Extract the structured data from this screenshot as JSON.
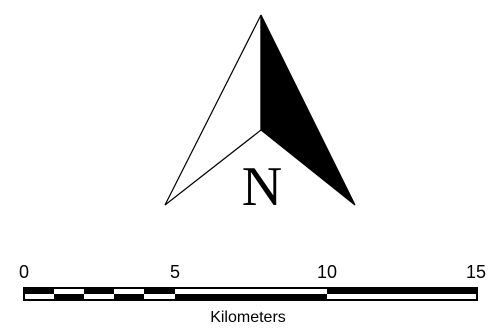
{
  "north_arrow": {
    "icon": "north-arrow-icon",
    "letter": "N"
  },
  "scale_bar": {
    "tick_values": [
      "0",
      "5",
      "10",
      "15"
    ],
    "unit": "Kilometers"
  }
}
